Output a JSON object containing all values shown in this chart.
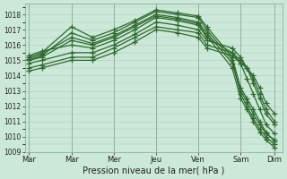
{
  "xlabel": "Pression niveau de la mer( hPa )",
  "bg_color": "#cce8d8",
  "grid_color": "#aacfbe",
  "line_color": "#2d6a2d",
  "marker": "+",
  "markersize": 4,
  "linewidth": 0.9,
  "ylim": [
    1009,
    1018.7
  ],
  "yticks": [
    1009,
    1010,
    1011,
    1012,
    1013,
    1014,
    1015,
    1016,
    1017,
    1018
  ],
  "xtick_labels": [
    "Mar",
    "Mar",
    "Mer",
    "Jeu",
    "Ven",
    "Sam",
    "Dim"
  ],
  "xtick_positions": [
    0,
    1,
    2,
    3,
    4,
    5,
    5.8
  ],
  "series": [
    [
      1015.0,
      1015.3,
      1016.8,
      1016.3,
      1016.8,
      1017.5,
      1018.2,
      1018.0,
      1017.8,
      1017.0,
      1015.0,
      1012.8,
      1012.0,
      1011.2,
      1010.5,
      1010.0,
      1009.5
    ],
    [
      1015.1,
      1015.4,
      1016.5,
      1016.1,
      1016.6,
      1017.3,
      1018.0,
      1017.8,
      1017.5,
      1016.8,
      1014.8,
      1013.0,
      1012.3,
      1011.5,
      1010.8,
      1010.2,
      1009.8
    ],
    [
      1015.2,
      1015.5,
      1017.2,
      1016.5,
      1017.0,
      1017.6,
      1018.3,
      1018.1,
      1017.9,
      1017.2,
      1015.2,
      1013.2,
      1012.5,
      1011.8,
      1011.0,
      1010.3,
      1009.7
    ],
    [
      1015.0,
      1015.2,
      1016.3,
      1016.0,
      1016.5,
      1017.2,
      1017.9,
      1017.7,
      1017.4,
      1016.6,
      1014.5,
      1012.5,
      1011.8,
      1011.0,
      1010.3,
      1009.8,
      1009.3
    ],
    [
      1015.3,
      1015.6,
      1016.0,
      1015.8,
      1016.3,
      1017.0,
      1017.8,
      1017.6,
      1017.3,
      1016.5,
      1015.5,
      1014.8,
      1013.8,
      1012.8,
      1011.8,
      1010.8,
      1010.2
    ],
    [
      1014.8,
      1015.0,
      1015.5,
      1015.5,
      1016.0,
      1016.7,
      1017.5,
      1017.3,
      1017.0,
      1016.3,
      1015.8,
      1015.2,
      1014.5,
      1013.5,
      1012.5,
      1011.5,
      1010.8
    ],
    [
      1014.5,
      1014.7,
      1015.2,
      1015.2,
      1015.8,
      1016.5,
      1017.2,
      1017.0,
      1016.8,
      1016.0,
      1015.5,
      1015.0,
      1014.5,
      1013.8,
      1012.8,
      1011.8,
      1011.0
    ],
    [
      1014.3,
      1014.5,
      1015.0,
      1015.0,
      1015.5,
      1016.2,
      1017.0,
      1016.8,
      1016.5,
      1015.8,
      1015.3,
      1014.8,
      1014.5,
      1014.0,
      1013.2,
      1012.2,
      1011.5
    ]
  ],
  "x_points": [
    0,
    0.3,
    1.0,
    1.5,
    2.0,
    2.5,
    3.0,
    3.5,
    4.0,
    4.2,
    4.8,
    5.0,
    5.15,
    5.3,
    5.45,
    5.6,
    5.8
  ]
}
